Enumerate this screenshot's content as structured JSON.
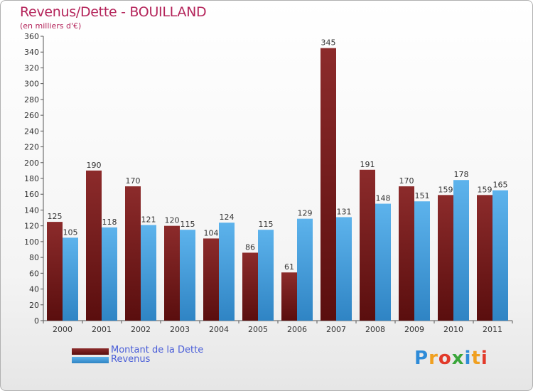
{
  "chart_data": {
    "type": "bar",
    "title": "Revenus/Dette - BOUILLAND",
    "subtitle": "(en milliers d'€)",
    "categories": [
      "2000",
      "2001",
      "2002",
      "2003",
      "2004",
      "2005",
      "2006",
      "2007",
      "2008",
      "2009",
      "2010",
      "2011"
    ],
    "series": [
      {
        "name": "Montant de la Dette",
        "color": "#7a1f1f",
        "values": [
          125,
          190,
          170,
          120,
          104,
          86,
          61,
          345,
          191,
          170,
          159,
          159
        ]
      },
      {
        "name": "Revenus",
        "color": "#4aa3e0",
        "values": [
          105,
          118,
          121,
          115,
          124,
          115,
          129,
          131,
          148,
          151,
          178,
          165
        ]
      }
    ],
    "ylim": [
      0,
      360
    ],
    "ytick_step": 20,
    "grid": false,
    "legend_position": "bottom-left"
  },
  "logo": {
    "letters": [
      "P",
      "r",
      "o",
      "x",
      "i",
      "t",
      "i"
    ],
    "colors": [
      "#2e8bd8",
      "#f0a020",
      "#e23a2a",
      "#3aa63a",
      "#2e8bd8",
      "#f0a020",
      "#e23a2a"
    ]
  }
}
